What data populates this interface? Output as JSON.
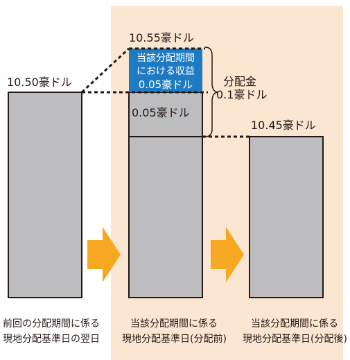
{
  "bars": {
    "previous": {
      "value_label": "10.50豪ドル",
      "caption_line1": "前回の分配期間に係る",
      "caption_line2": "現地分配基準日の翌日"
    },
    "before": {
      "top_label": "10.55豪ドル",
      "income_line1": "当該分配期間",
      "income_line2": "における収益",
      "income_line3": "0.05豪ドル",
      "drawdown_label": "0.05豪ドル",
      "caption_line1": "当該分配期間に係る",
      "caption_line2": "現地分配基準日(分配前)"
    },
    "after": {
      "value_label": "10.45豪ドル",
      "caption_line1": "当該分配期間に係る",
      "caption_line2": "現地分配基準日(分配後)"
    }
  },
  "distribution": {
    "label_line1": "分配金",
    "label_line2": "0.1豪ドル"
  },
  "colors": {
    "bar_fill": "#bdbdbf",
    "income_fill": "#1f7bc1",
    "arrow": "#f7a823",
    "highlight_bg": "#fbe6d2",
    "outline": "#231815"
  },
  "icons": {
    "arrow_1": "right-arrow-icon",
    "arrow_2": "right-arrow-icon"
  }
}
